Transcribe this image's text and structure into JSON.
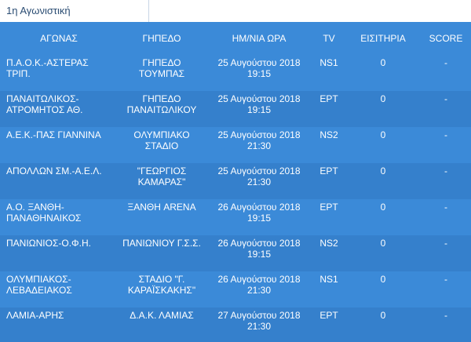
{
  "tab": {
    "label": "1η Αγωνιστική"
  },
  "headers": {
    "match": "ΑΓΩΝΑΣ",
    "stadium": "ΓΗΠΕΔΟ",
    "datetime": "ΗΜ/ΝΙΑ ΩΡΑ",
    "tv": "TV",
    "tickets": "ΕΙΣΙΤΗΡΙΑ",
    "score": "SCORE"
  },
  "rows": [
    {
      "match": "Π.Α.Ο.Κ.-ΑΣΤΕΡΑΣ ΤΡΙΠ.",
      "stadium": "ΓΗΠΕΔΟ ΤΟΥΜΠΑΣ",
      "date": "25 Αυγούστου 2018",
      "time": "19:15",
      "tv": "NS1",
      "tickets": "0",
      "score": "-"
    },
    {
      "match": "ΠΑΝΑΙΤΩΛΙΚΟΣ-ΑΤΡΟΜΗΤΟΣ ΑΘ.",
      "stadium": "ΓΗΠΕΔΟ ΠΑΝΑΙΤΩΛΙΚΟΥ",
      "date": "25 Αυγούστου 2018",
      "time": "19:15",
      "tv": "ΕΡΤ",
      "tickets": "0",
      "score": "-"
    },
    {
      "match": "Α.Ε.Κ.-ΠΑΣ ΓΙΑΝΝΙΝΑ",
      "stadium": "ΟΛΥΜΠΙΑΚΟ ΣΤΑΔΙΟ",
      "date": "25 Αυγούστου 2018",
      "time": "21:30",
      "tv": "NS2",
      "tickets": "0",
      "score": "-"
    },
    {
      "match": "ΑΠΟΛΛΩΝ ΣΜ.-Α.Ε.Λ.",
      "stadium": "\"ΓΕΩΡΓΙΟΣ ΚΑΜΑΡΑΣ\"",
      "date": "25 Αυγούστου 2018",
      "time": "21:30",
      "tv": "ΕΡΤ",
      "tickets": "0",
      "score": "-"
    },
    {
      "match": "Α.Ο. ΞΑΝΘΗ-ΠΑΝΑΘΗΝΑΙΚΟΣ",
      "stadium": "ΞΑΝΘΗ ARENA",
      "date": "26 Αυγούστου 2018",
      "time": "19:15",
      "tv": "ΕΡΤ",
      "tickets": "0",
      "score": "-"
    },
    {
      "match": "ΠΑΝΙΩΝΙΟΣ-Ο.Φ.Η.",
      "stadium": "ΠΑΝΙΩΝΙΟΥ Γ.Σ.Σ.",
      "date": "26 Αυγούστου 2018",
      "time": "19:15",
      "tv": "NS2",
      "tickets": "0",
      "score": "-"
    },
    {
      "match": "ΟΛΥΜΠΙΑΚΟΣ-ΛΕΒΑΔΕΙΑΚΟΣ",
      "stadium": "ΣΤΑΔΙΟ \"Γ. ΚΑΡΑΪΣΚΑΚΗΣ\"",
      "date": "26 Αυγούστου 2018",
      "time": "21:30",
      "tv": "NS1",
      "tickets": "0",
      "score": "-"
    },
    {
      "match": "ΛΑΜΙΑ-ΑΡΗΣ",
      "stadium": "Δ.Α.Κ. ΛΑΜΙΑΣ",
      "date": "27 Αυγούστου 2018",
      "time": "21:30",
      "tv": "ΕΡΤ",
      "tickets": "0",
      "score": "-"
    }
  ]
}
